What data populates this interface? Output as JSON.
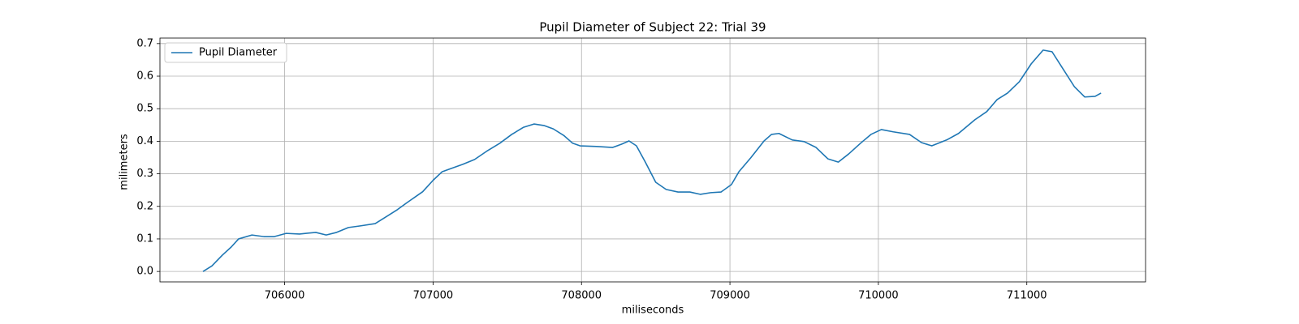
{
  "chart_data": {
    "type": "line",
    "title": "Pupil Diameter of Subject 22: Trial 39",
    "x_label": "miliseconds",
    "y_label": "milimeters",
    "xlim": [
      705160,
      711800
    ],
    "ylim": [
      -0.032,
      0.717
    ],
    "xticks": [
      706000,
      707000,
      708000,
      709000,
      710000,
      711000
    ],
    "yticks": [
      {
        "value": 0,
        "label": "0.0"
      },
      0.1,
      0.2,
      0.3,
      0.4,
      0.5,
      0.6,
      0.7
    ],
    "grid": true,
    "legend": "upper-left",
    "x": [
      705450,
      705510,
      705580,
      705640,
      705690,
      705780,
      705860,
      705930,
      706010,
      706100,
      706210,
      706280,
      706350,
      706430,
      706510,
      706610,
      706680,
      706760,
      706820,
      706930,
      707000,
      707060,
      707120,
      707200,
      707280,
      707360,
      707450,
      707530,
      707610,
      707680,
      707750,
      707810,
      707880,
      707940,
      707990,
      708100,
      708210,
      708270,
      708320,
      708370,
      708430,
      708500,
      708570,
      708650,
      708730,
      708800,
      708870,
      708940,
      709010,
      709060,
      709140,
      709230,
      709280,
      709330,
      709420,
      709500,
      709580,
      709660,
      709730,
      709800,
      709880,
      709950,
      710020,
      710100,
      710210,
      710290,
      710360,
      710460,
      710540,
      710650,
      710730,
      710800,
      710870,
      710950,
      711030,
      711110,
      711170,
      711240,
      711320,
      711390,
      711460,
      711500
    ],
    "series": [
      {
        "name": "Pupil Diameter",
        "color": "#1f77b4",
        "values": [
          0.0,
          0.017,
          0.05,
          0.075,
          0.1,
          0.112,
          0.107,
          0.107,
          0.117,
          0.115,
          0.12,
          0.112,
          0.12,
          0.135,
          0.14,
          0.147,
          0.167,
          0.19,
          0.21,
          0.245,
          0.28,
          0.306,
          0.316,
          0.329,
          0.344,
          0.369,
          0.394,
          0.421,
          0.443,
          0.453,
          0.448,
          0.438,
          0.418,
          0.394,
          0.386,
          0.384,
          0.381,
          0.391,
          0.401,
          0.386,
          0.336,
          0.274,
          0.252,
          0.244,
          0.244,
          0.237,
          0.242,
          0.244,
          0.267,
          0.306,
          0.349,
          0.401,
          0.421,
          0.424,
          0.404,
          0.399,
          0.381,
          0.346,
          0.336,
          0.361,
          0.394,
          0.421,
          0.436,
          0.429,
          0.421,
          0.396,
          0.386,
          0.404,
          0.424,
          0.466,
          0.491,
          0.528,
          0.548,
          0.583,
          0.638,
          0.68,
          0.675,
          0.625,
          0.568,
          0.536,
          0.538,
          0.548
        ]
      }
    ]
  }
}
